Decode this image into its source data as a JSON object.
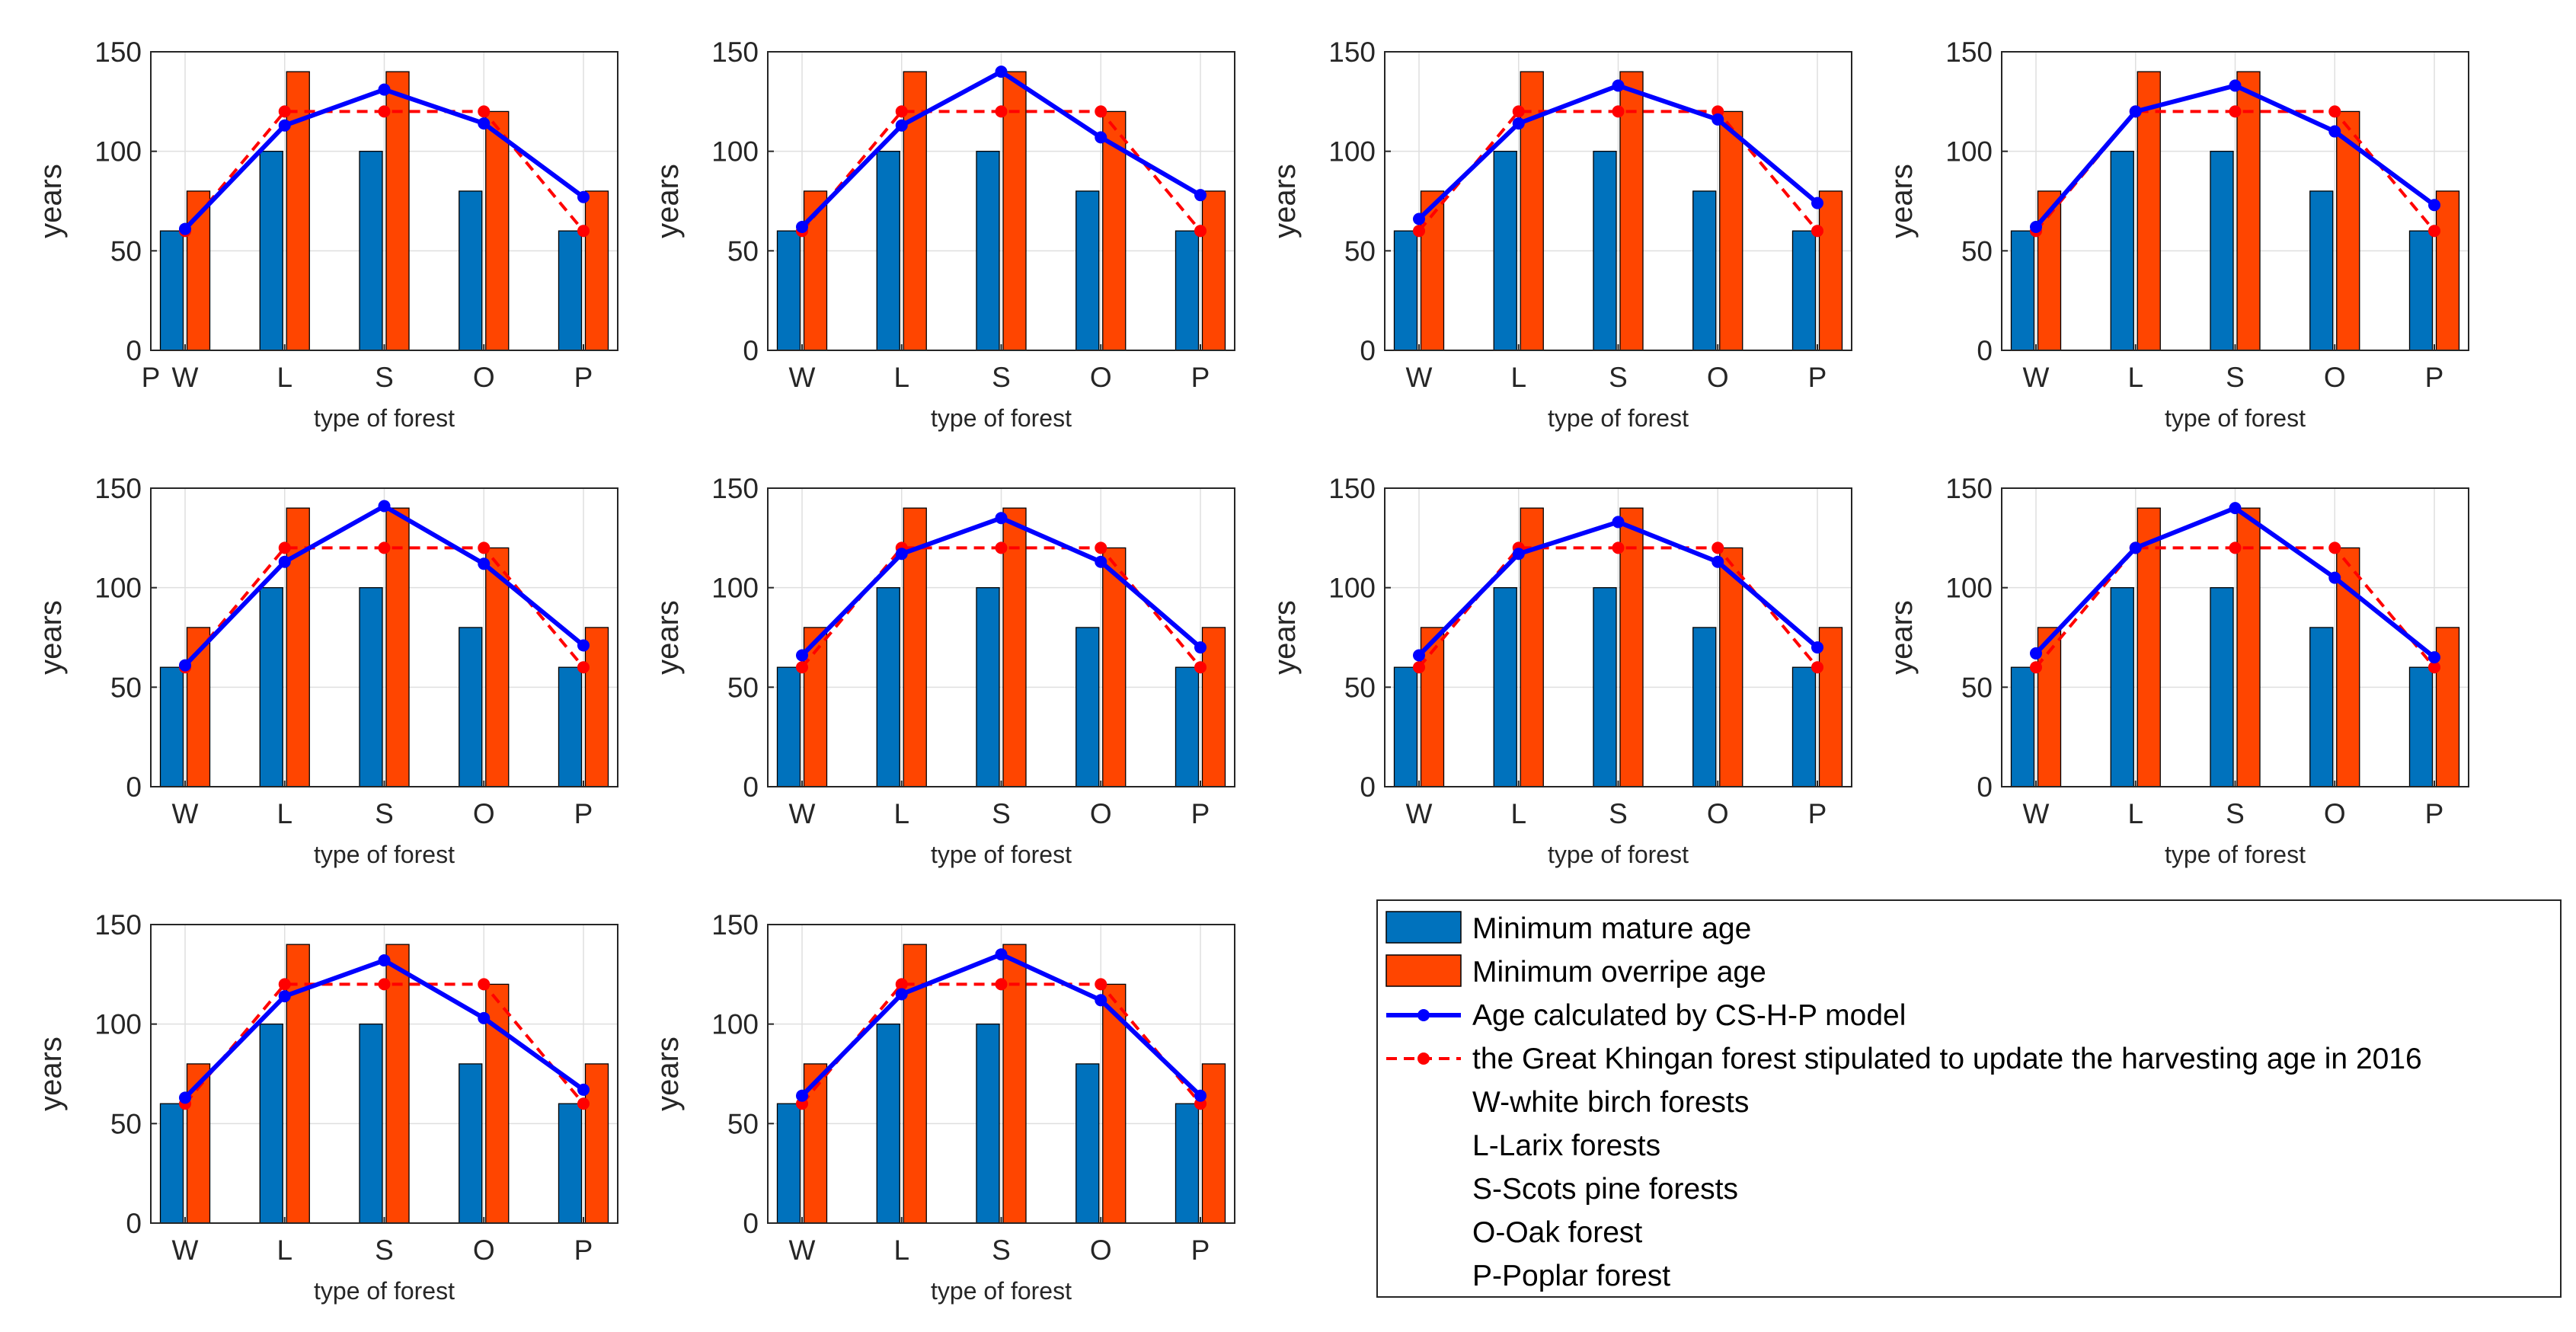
{
  "colors": {
    "mature": "#0072BD",
    "overripe": "#FF4500",
    "model": "#0000FF",
    "stipulated": "#FF0000",
    "grid": "#DFDFDF",
    "axis": "#262626"
  },
  "legend": {
    "entries": [
      {
        "label": "Minimum mature age",
        "marker": "bar-blue"
      },
      {
        "label": "Minimum overripe age",
        "marker": "bar-orange"
      },
      {
        "label": "Age calculated by CS-H-P model",
        "marker": "line-blue"
      },
      {
        "label": "the Great Khingan forest stipulated to update the harvesting age in 2016",
        "marker": "line-red-dashed"
      }
    ],
    "notes": [
      "W-white birch forests",
      "L-Larix forests",
      "S-Scots pine forests",
      "O-Oak forest",
      "P-Poplar forest"
    ]
  },
  "chart_data": [
    {
      "type": "bar",
      "categories": [
        "W",
        "L",
        "S",
        "O",
        "P"
      ],
      "extra_left_tick": "P",
      "xlabel": "type of forest",
      "ylabel": "years",
      "ylim": [
        0,
        150
      ],
      "yticks": [
        0,
        50,
        100,
        150
      ],
      "grid": true,
      "series": [
        {
          "name": "Minimum mature age",
          "type": "bar",
          "values": [
            60,
            100,
            100,
            80,
            60
          ]
        },
        {
          "name": "Minimum overripe age",
          "type": "bar",
          "values": [
            80,
            140,
            140,
            120,
            80
          ]
        },
        {
          "name": "Age calculated by CS-H-P model",
          "type": "line",
          "values": [
            61,
            113,
            131,
            114,
            77
          ]
        },
        {
          "name": "the Great Khingan forest stipulated to update the harvesting age in 2016",
          "type": "line",
          "values": [
            60,
            120,
            120,
            120,
            60
          ]
        }
      ]
    },
    {
      "type": "bar",
      "categories": [
        "W",
        "L",
        "S",
        "O",
        "P"
      ],
      "xlabel": "type of forest",
      "ylabel": "years",
      "ylim": [
        0,
        150
      ],
      "yticks": [
        0,
        50,
        100,
        150
      ],
      "grid": true,
      "series": [
        {
          "name": "Minimum mature age",
          "type": "bar",
          "values": [
            60,
            100,
            100,
            80,
            60
          ]
        },
        {
          "name": "Minimum overripe age",
          "type": "bar",
          "values": [
            80,
            140,
            140,
            120,
            80
          ]
        },
        {
          "name": "Age calculated by CS-H-P model",
          "type": "line",
          "values": [
            62,
            113,
            140,
            107,
            78
          ]
        },
        {
          "name": "the Great Khingan forest stipulated to update the harvesting age in 2016",
          "type": "line",
          "values": [
            60,
            120,
            120,
            120,
            60
          ]
        }
      ]
    },
    {
      "type": "bar",
      "categories": [
        "W",
        "L",
        "S",
        "O",
        "P"
      ],
      "xlabel": "type of forest",
      "ylabel": "years",
      "ylim": [
        0,
        150
      ],
      "yticks": [
        0,
        50,
        100,
        150
      ],
      "grid": true,
      "series": [
        {
          "name": "Minimum mature age",
          "type": "bar",
          "values": [
            60,
            100,
            100,
            80,
            60
          ]
        },
        {
          "name": "Minimum overripe age",
          "type": "bar",
          "values": [
            80,
            140,
            140,
            120,
            80
          ]
        },
        {
          "name": "Age calculated by CS-H-P model",
          "type": "line",
          "values": [
            66,
            114,
            133,
            116,
            74
          ]
        },
        {
          "name": "the Great Khingan forest stipulated to update the harvesting age in 2016",
          "type": "line",
          "values": [
            60,
            120,
            120,
            120,
            60
          ]
        }
      ]
    },
    {
      "type": "bar",
      "categories": [
        "W",
        "L",
        "S",
        "O",
        "P"
      ],
      "xlabel": "type of forest",
      "ylabel": "years",
      "ylim": [
        0,
        150
      ],
      "yticks": [
        0,
        50,
        100,
        150
      ],
      "grid": true,
      "series": [
        {
          "name": "Minimum mature age",
          "type": "bar",
          "values": [
            60,
            100,
            100,
            80,
            60
          ]
        },
        {
          "name": "Minimum overripe age",
          "type": "bar",
          "values": [
            80,
            140,
            140,
            120,
            80
          ]
        },
        {
          "name": "Age calculated by CS-H-P model",
          "type": "line",
          "values": [
            62,
            120,
            133,
            110,
            73
          ]
        },
        {
          "name": "the Great Khingan forest stipulated to update the harvesting age in 2016",
          "type": "line",
          "values": [
            60,
            120,
            120,
            120,
            60
          ]
        }
      ]
    },
    {
      "type": "bar",
      "categories": [
        "W",
        "L",
        "S",
        "O",
        "P"
      ],
      "xlabel": "type of forest",
      "ylabel": "years",
      "ylim": [
        0,
        150
      ],
      "yticks": [
        0,
        50,
        100,
        150
      ],
      "grid": true,
      "series": [
        {
          "name": "Minimum mature age",
          "type": "bar",
          "values": [
            60,
            100,
            100,
            80,
            60
          ]
        },
        {
          "name": "Minimum overripe age",
          "type": "bar",
          "values": [
            80,
            140,
            140,
            120,
            80
          ]
        },
        {
          "name": "Age calculated by CS-H-P model",
          "type": "line",
          "values": [
            61,
            113,
            141,
            112,
            71
          ]
        },
        {
          "name": "the Great Khingan forest stipulated to update the harvesting age in 2016",
          "type": "line",
          "values": [
            60,
            120,
            120,
            120,
            60
          ]
        }
      ]
    },
    {
      "type": "bar",
      "categories": [
        "W",
        "L",
        "S",
        "O",
        "P"
      ],
      "xlabel": "type of forest",
      "ylabel": "years",
      "ylim": [
        0,
        150
      ],
      "yticks": [
        0,
        50,
        100,
        150
      ],
      "grid": true,
      "series": [
        {
          "name": "Minimum mature age",
          "type": "bar",
          "values": [
            60,
            100,
            100,
            80,
            60
          ]
        },
        {
          "name": "Minimum overripe age",
          "type": "bar",
          "values": [
            80,
            140,
            140,
            120,
            80
          ]
        },
        {
          "name": "Age calculated by CS-H-P model",
          "type": "line",
          "values": [
            66,
            117,
            135,
            113,
            70
          ]
        },
        {
          "name": "the Great Khingan forest stipulated to update the harvesting age in 2016",
          "type": "line",
          "values": [
            60,
            120,
            120,
            120,
            60
          ]
        }
      ]
    },
    {
      "type": "bar",
      "categories": [
        "W",
        "L",
        "S",
        "O",
        "P"
      ],
      "xlabel": "type of forest",
      "ylabel": "years",
      "ylim": [
        0,
        150
      ],
      "yticks": [
        0,
        50,
        100,
        150
      ],
      "grid": true,
      "series": [
        {
          "name": "Minimum mature age",
          "type": "bar",
          "values": [
            60,
            100,
            100,
            80,
            60
          ]
        },
        {
          "name": "Minimum overripe age",
          "type": "bar",
          "values": [
            80,
            140,
            140,
            120,
            80
          ]
        },
        {
          "name": "Age calculated by CS-H-P model",
          "type": "line",
          "values": [
            66,
            117,
            133,
            113,
            70
          ]
        },
        {
          "name": "the Great Khingan forest stipulated to update the harvesting age in 2016",
          "type": "line",
          "values": [
            60,
            120,
            120,
            120,
            60
          ]
        }
      ]
    },
    {
      "type": "bar",
      "categories": [
        "W",
        "L",
        "S",
        "O",
        "P"
      ],
      "xlabel": "type of forest",
      "ylabel": "years",
      "ylim": [
        0,
        150
      ],
      "yticks": [
        0,
        50,
        100,
        150
      ],
      "grid": true,
      "series": [
        {
          "name": "Minimum mature age",
          "type": "bar",
          "values": [
            60,
            100,
            100,
            80,
            60
          ]
        },
        {
          "name": "Minimum overripe age",
          "type": "bar",
          "values": [
            80,
            140,
            140,
            120,
            80
          ]
        },
        {
          "name": "Age calculated by CS-H-P model",
          "type": "line",
          "values": [
            67,
            120,
            140,
            105,
            65
          ]
        },
        {
          "name": "the Great Khingan forest stipulated to update the harvesting age in 2016",
          "type": "line",
          "values": [
            60,
            120,
            120,
            120,
            60
          ]
        }
      ]
    },
    {
      "type": "bar",
      "categories": [
        "W",
        "L",
        "S",
        "O",
        "P"
      ],
      "xlabel": "type of forest",
      "ylabel": "years",
      "ylim": [
        0,
        150
      ],
      "yticks": [
        0,
        50,
        100,
        150
      ],
      "grid": true,
      "series": [
        {
          "name": "Minimum mature age",
          "type": "bar",
          "values": [
            60,
            100,
            100,
            80,
            60
          ]
        },
        {
          "name": "Minimum overripe age",
          "type": "bar",
          "values": [
            80,
            140,
            140,
            120,
            80
          ]
        },
        {
          "name": "Age calculated by CS-H-P model",
          "type": "line",
          "values": [
            63,
            114,
            132,
            103,
            67
          ]
        },
        {
          "name": "the Great Khingan forest stipulated to update the harvesting age in 2016",
          "type": "line",
          "values": [
            60,
            120,
            120,
            120,
            60
          ]
        }
      ]
    },
    {
      "type": "bar",
      "categories": [
        "W",
        "L",
        "S",
        "O",
        "P"
      ],
      "xlabel": "type of forest",
      "ylabel": "years",
      "ylim": [
        0,
        150
      ],
      "yticks": [
        0,
        50,
        100,
        150
      ],
      "grid": true,
      "series": [
        {
          "name": "Minimum mature age",
          "type": "bar",
          "values": [
            60,
            100,
            100,
            80,
            60
          ]
        },
        {
          "name": "Minimum overripe age",
          "type": "bar",
          "values": [
            80,
            140,
            140,
            120,
            80
          ]
        },
        {
          "name": "Age calculated by CS-H-P model",
          "type": "line",
          "values": [
            64,
            115,
            135,
            112,
            64
          ]
        },
        {
          "name": "the Great Khingan forest stipulated to update the harvesting age in 2016",
          "type": "line",
          "values": [
            60,
            120,
            120,
            120,
            60
          ]
        }
      ]
    }
  ]
}
